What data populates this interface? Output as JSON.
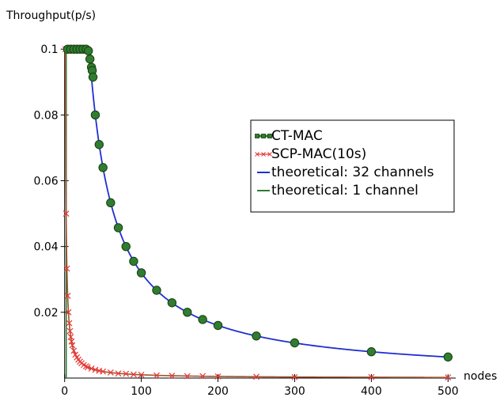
{
  "chart_data": {
    "type": "line",
    "title": "",
    "xlabel": "nodes",
    "ylabel": "Throughput(p/s)",
    "xlim": [
      -10,
      510
    ],
    "ylim": [
      0,
      0.101
    ],
    "x_ticks": [
      0,
      100,
      200,
      300,
      400,
      500
    ],
    "x_tick_labels": [
      "0",
      "100",
      "200",
      "300",
      "400",
      "500"
    ],
    "y_ticks": [
      0.02,
      0.04,
      0.06,
      0.08,
      0.1
    ],
    "y_tick_labels": [
      "0.02",
      "0.04",
      "0.06",
      "0.08",
      "0.1"
    ],
    "grid": false,
    "legend_position": "center-right",
    "series": [
      {
        "name": "CT-MAC",
        "kind": "markers",
        "marker": "circle",
        "color": "#2e7d32",
        "edge_color": "#1a3d0a",
        "x": [
          4,
          8,
          12,
          16,
          20,
          24,
          28,
          31,
          33,
          35,
          36,
          37,
          40,
          45,
          50,
          60,
          70,
          80,
          90,
          100,
          120,
          140,
          160,
          180,
          200,
          250,
          300,
          400,
          500
        ],
        "y": [
          0.1,
          0.1,
          0.1,
          0.1,
          0.1,
          0.1,
          0.1,
          0.0995,
          0.097,
          0.0945,
          0.0935,
          0.0915,
          0.08,
          0.071,
          0.064,
          0.0533,
          0.0457,
          0.04,
          0.0355,
          0.032,
          0.0267,
          0.0229,
          0.02,
          0.0178,
          0.016,
          0.0128,
          0.0107,
          0.008,
          0.0064
        ]
      },
      {
        "name": "SCP-MAC(10s)",
        "kind": "markers-line",
        "marker": "x",
        "color": "#e53935",
        "x": [
          1,
          2,
          3,
          4,
          5,
          6,
          7,
          8,
          9,
          10,
          12,
          14,
          16,
          18,
          20,
          22,
          25,
          28,
          30,
          35,
          40,
          45,
          50,
          60,
          70,
          80,
          90,
          100,
          120,
          140,
          160,
          180,
          200,
          250,
          300,
          400,
          500
        ],
        "y": [
          0.1,
          0.05,
          0.0333,
          0.025,
          0.02,
          0.0167,
          0.0143,
          0.0125,
          0.0111,
          0.01,
          0.0083,
          0.0071,
          0.0063,
          0.0056,
          0.005,
          0.0045,
          0.004,
          0.0036,
          0.0033,
          0.0029,
          0.0025,
          0.0022,
          0.002,
          0.0017,
          0.0014,
          0.0013,
          0.0011,
          0.001,
          0.0008,
          0.0007,
          0.0006,
          0.0006,
          0.0005,
          0.0004,
          0.0003,
          0.0003,
          0.0002
        ]
      },
      {
        "name": "theoretical: 32 channels",
        "kind": "curve",
        "color": "#1f2fd0",
        "formula": "min(0.1, 3.2/n)"
      },
      {
        "name": "theoretical: 1 channel",
        "kind": "curve",
        "color": "#2e7d32",
        "formula": "min(0.1, 0.1/n)"
      }
    ]
  }
}
